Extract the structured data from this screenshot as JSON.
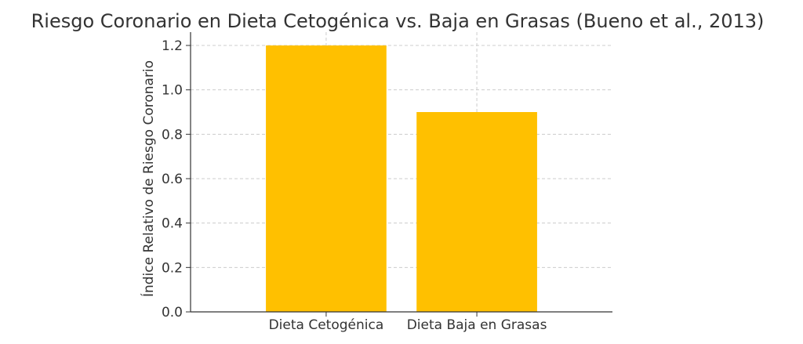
{
  "chart_data": {
    "type": "bar",
    "title": "Riesgo Coronario en Dieta Cetogénica vs. Baja en Grasas (Bueno et al., 2013)",
    "xlabel": "",
    "ylabel": "Índice Relativo de Riesgo Coronario",
    "categories": [
      "Dieta Cetogénica",
      "Dieta Baja en Grasas"
    ],
    "values": [
      1.2,
      0.9
    ],
    "ylim": [
      0,
      1.26
    ],
    "yticks": [
      "0.0",
      "0.2",
      "0.4",
      "0.6",
      "0.8",
      "1.0",
      "1.2"
    ],
    "bar_color": "#FFC000",
    "grid": true,
    "legend": "none"
  }
}
